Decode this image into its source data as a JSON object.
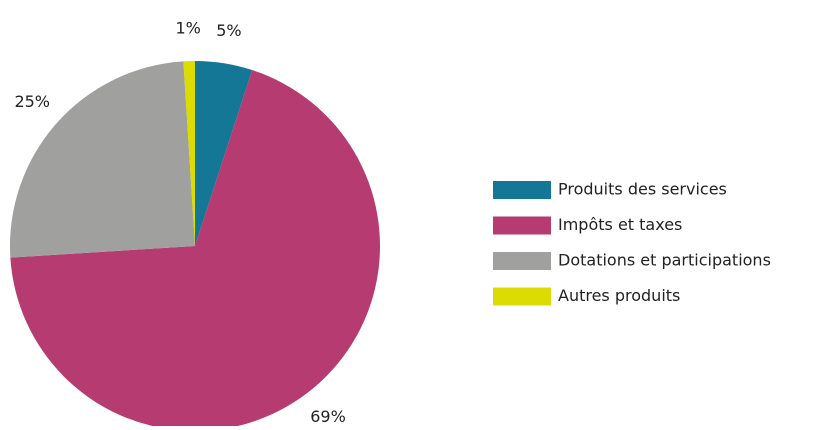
{
  "chart_data": {
    "type": "pie",
    "categories": [
      "Produits des services",
      "Impôts et taxes",
      "Dotations et participations",
      "Autres produits"
    ],
    "values": [
      5,
      69,
      25,
      1
    ],
    "value_labels": [
      "5%",
      "69%",
      "25%",
      "1%"
    ],
    "colors": [
      "#137795",
      "#b53b70",
      "#a0a09e",
      "#dcdc00"
    ],
    "legend": "right"
  }
}
